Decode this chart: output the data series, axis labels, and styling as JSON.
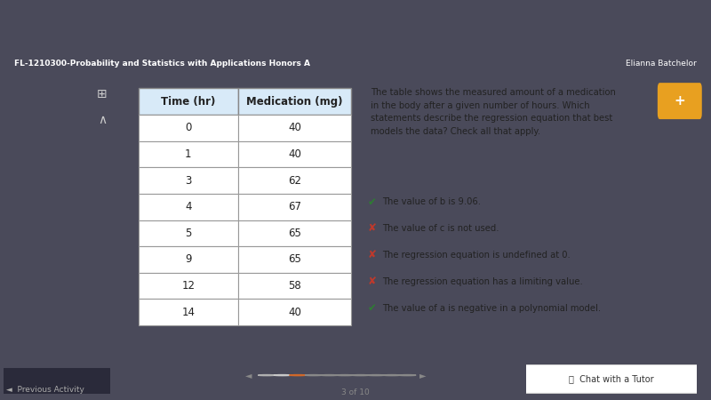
{
  "table_headers": [
    "Time (hr)",
    "Medication (mg)"
  ],
  "table_rows": [
    [
      "0",
      "40"
    ],
    [
      "1",
      "40"
    ],
    [
      "3",
      "62"
    ],
    [
      "4",
      "67"
    ],
    [
      "5",
      "65"
    ],
    [
      "9",
      "65"
    ],
    [
      "12",
      "58"
    ],
    [
      "14",
      "40"
    ]
  ],
  "question_text": "The table shows the measured amount of a medication\nin the body after a given number of hours. Which\nstatements describe the regression equation that best\nmodels the data? Check all that apply.",
  "statements": [
    {
      "text": "The value of b is 9.06.",
      "correct": true
    },
    {
      "text": "The value of c is not used.",
      "correct": false
    },
    {
      "text": "The regression equation is undefined at 0.",
      "correct": false
    },
    {
      "text": "The regression equation has a limiting value.",
      "correct": false
    },
    {
      "text": "The value of a is negative in a polynomial model.",
      "correct": true
    }
  ],
  "bg_outer": "#4a4a5a",
  "bg_inner": "#ffffff",
  "bg_bottom_strip": "#e8e8ec",
  "nav_bar_color": "#4a4880",
  "nav_bar_text": "FL-1210300-Probability and Statistics with Applications Honors A",
  "nav_bar_right": "Elianna Batchelor",
  "sidebar_color": "#555566",
  "header_bg": "#d8eaf8",
  "table_border": "#aaaaaa",
  "check_color": "#2e7d32",
  "cross_color": "#c0392b",
  "text_color": "#222222",
  "dot_colors": [
    "#b0b0b0",
    "#c8c8c8",
    "#d0682a",
    "#888888",
    "#888888",
    "#888888",
    "#888888",
    "#888888",
    "#888888",
    "#888888"
  ],
  "page_text": "3 of 10",
  "chat_text": "Chat with a Tutor",
  "prev_activity": "Previous Activity"
}
